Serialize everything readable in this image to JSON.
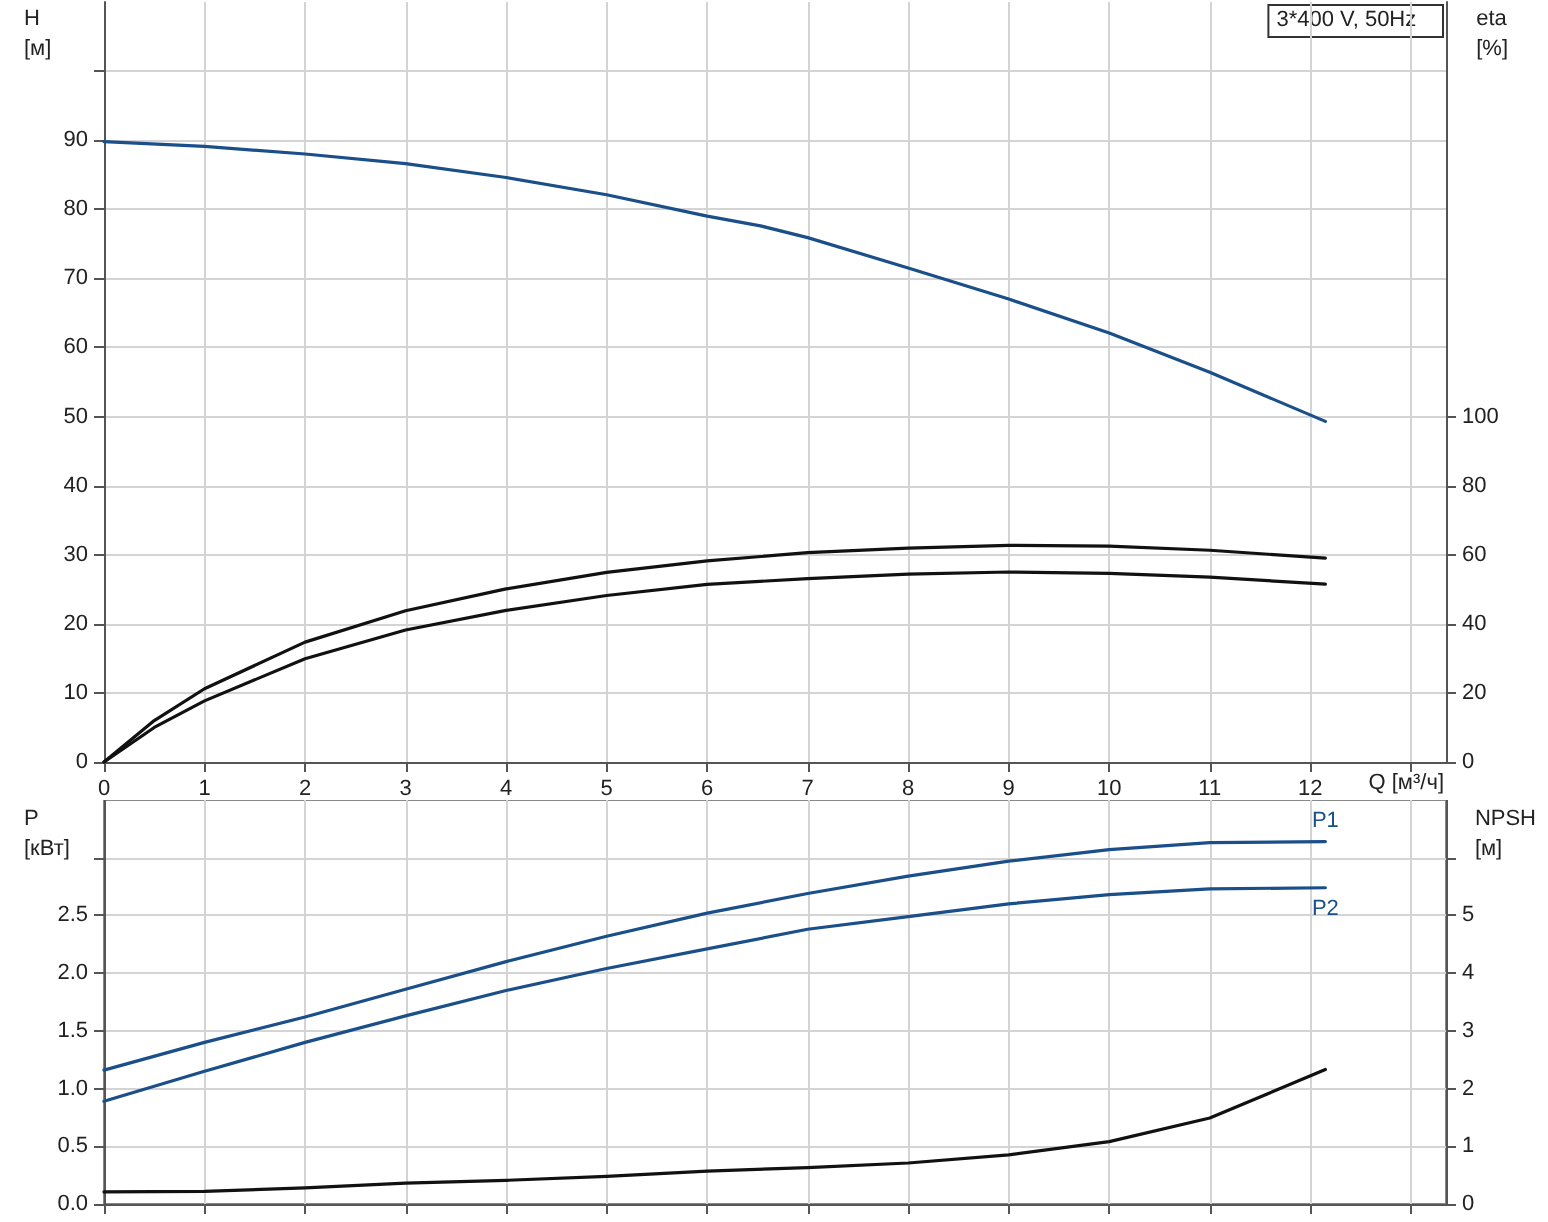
{
  "chart_data": [
    {
      "type": "line",
      "xlabel": "Q [м³/ч]",
      "ylabel": "H\n[м]",
      "y2label": "eta\n[%]",
      "annotations": [
        "3*400 V, 50Hz"
      ],
      "grid": true,
      "xlim": [
        0,
        13.35
      ],
      "xticks": [
        0,
        1,
        2,
        3,
        4,
        5,
        6,
        7,
        8,
        9,
        10,
        11,
        12,
        {
          "value": 13,
          "label": null
        }
      ],
      "ylim": [
        0,
        110
      ],
      "yticks": [
        0,
        10,
        20,
        30,
        40,
        50,
        60,
        70,
        80,
        90,
        {
          "value": 100,
          "label": null
        }
      ],
      "y2lim": [
        0,
        220
      ],
      "y2ticks": [
        0,
        20,
        40,
        60,
        80,
        100
      ],
      "series": [
        {
          "color": "#1a4f8a",
          "x": [
            0,
            1,
            2,
            3,
            4,
            5,
            6,
            6.53,
            7,
            8,
            9,
            10,
            11,
            12.15
          ],
          "values": [
            89.8,
            89.1,
            88.0,
            86.6,
            84.6,
            82.1,
            79.0,
            77.6,
            75.9,
            71.5,
            67.0,
            62.1,
            56.4,
            49.3
          ]
        },
        {
          "color": "#111111",
          "axis": "y2",
          "x": [
            0,
            0.5,
            1,
            2,
            3,
            4,
            5,
            6,
            7,
            8,
            9,
            10,
            11,
            12.15
          ],
          "values": [
            0,
            12,
            21.2,
            34.7,
            43.8,
            50.1,
            54.9,
            58.2,
            60.6,
            61.9,
            62.7,
            62.5,
            61.3,
            59.0
          ]
        },
        {
          "color": "#111111",
          "axis": "y2",
          "x": [
            0,
            0.5,
            1,
            2,
            3,
            4,
            5,
            6,
            7,
            8,
            9,
            10,
            11,
            12.15
          ],
          "values": [
            0,
            10,
            17.7,
            29.9,
            38.2,
            43.9,
            48.2,
            51.4,
            53.1,
            54.4,
            55.0,
            54.6,
            53.5,
            51.5
          ]
        }
      ]
    },
    {
      "type": "line",
      "ylabel": "P\n[кВт]",
      "y2label": "NPSH\n[м]",
      "grid": true,
      "tick_labels": "y",
      "xlim": [
        0,
        13.35
      ],
      "xticks": [
        0,
        1,
        2,
        3,
        4,
        5,
        6,
        7,
        8,
        9,
        10,
        11,
        12,
        {
          "value": 13,
          "label": null
        }
      ],
      "ylim": [
        0,
        3.5
      ],
      "yticks": [
        {
          "value": 0,
          "label": "0.0"
        },
        0.5,
        {
          "value": 1,
          "label": "1.0"
        },
        1.5,
        {
          "value": 2,
          "label": "2.0"
        },
        2.5,
        {
          "value": 3,
          "label": null
        }
      ],
      "y2lim": [
        0,
        7
      ],
      "y2ticks": [
        0,
        1,
        2,
        3,
        4,
        5,
        {
          "value": 6,
          "label": null
        }
      ],
      "series": [
        {
          "name": "P1",
          "color": "#1a4f8a",
          "x": [
            0,
            1,
            2,
            3,
            4,
            5,
            6,
            7,
            8,
            9,
            10,
            11,
            12.15
          ],
          "values": [
            1.16,
            1.4,
            1.62,
            1.86,
            2.1,
            2.32,
            2.52,
            2.69,
            2.84,
            2.97,
            3.07,
            3.13,
            3.14
          ]
        },
        {
          "name": "P2",
          "color": "#1a4f8a",
          "x": [
            0,
            1,
            2,
            3,
            4,
            5,
            6,
            7,
            8,
            9,
            10,
            11,
            12.15
          ],
          "values": [
            0.89,
            1.15,
            1.4,
            1.63,
            1.85,
            2.04,
            2.21,
            2.38,
            2.49,
            2.6,
            2.68,
            2.73,
            2.74
          ]
        },
        {
          "color": "#111111",
          "axis": "y2",
          "x": [
            0,
            1,
            2,
            3,
            4,
            5,
            6,
            7,
            8,
            9,
            10,
            11,
            12.15
          ],
          "values": [
            0.21,
            0.22,
            0.28,
            0.36,
            0.41,
            0.48,
            0.57,
            0.63,
            0.71,
            0.85,
            1.08,
            1.49,
            2.33
          ]
        }
      ]
    }
  ]
}
